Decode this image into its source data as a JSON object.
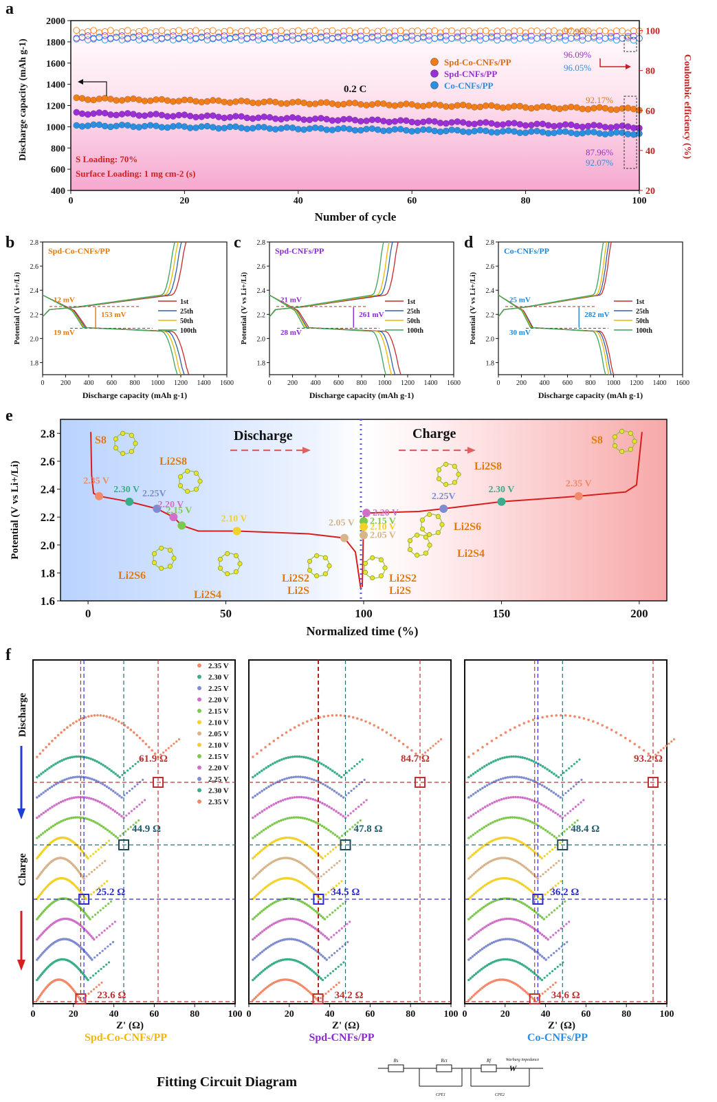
{
  "chart_data": [
    {
      "id": "a",
      "panel_label": "a",
      "type": "scatter",
      "title": "",
      "xlabel": "Number of cycle",
      "ylabel": "Discharge capacity (mAh g-1)",
      "ylabel_right": "Coulombic efficiency (%)",
      "xlim": [
        0,
        100
      ],
      "ylim": [
        400,
        2000
      ],
      "ylim_right": [
        20,
        105
      ],
      "xticks": [
        "0",
        "20",
        "40",
        "60",
        "80",
        "100"
      ],
      "yticks": [
        "400",
        "600",
        "800",
        "1000",
        "1200",
        "1400",
        "1600",
        "1800",
        "2000"
      ],
      "yticks_right": [
        "20",
        "40",
        "60",
        "80",
        "100"
      ],
      "rate_label": "0.2 C",
      "notes": [
        "S Loading: 70%",
        "Surface Loading: 1 mg cm-2 (s)"
      ],
      "legend": [
        "Spd-Co-CNFs/PP",
        "Spd-CNFs/PP",
        "Co-CNFs/PP"
      ],
      "series": [
        {
          "name": "Spd-Co-CNFs/PP",
          "color": "#f07d1a",
          "capacity_start": 1265,
          "capacity_end": 1165,
          "ce": 97.96,
          "retention": "92.17%",
          "ce_label": "97.96%"
        },
        {
          "name": "Spd-CNFs/PP",
          "color": "#9b2fd6",
          "capacity_start": 1130,
          "capacity_end": 995,
          "ce": 96.09,
          "retention": "87.96%",
          "ce_label": "96.09%"
        },
        {
          "name": "Co-CNFs/PP",
          "color": "#2a8fe0",
          "capacity_start": 1015,
          "capacity_end": 935,
          "ce": 96.05,
          "retention": "92.07%",
          "ce_label": "96.05%"
        }
      ]
    },
    {
      "id": "b",
      "panel_label": "b",
      "type": "line",
      "sample": "Spd-Co-CNFs/PP",
      "sample_color": "#e07a10",
      "xlabel": "Discharge capacity (mAh g-1)",
      "ylabel": "Potential (V vs Li+/Li)",
      "xlim": [
        0,
        1600
      ],
      "ylim": [
        1.7,
        2.8
      ],
      "xticks": [
        "0",
        "200",
        "400",
        "600",
        "800",
        "1000",
        "1200",
        "1400",
        "1600"
      ],
      "yticks": [
        "1.8",
        "2.0",
        "2.2",
        "2.4",
        "2.6",
        "2.8"
      ],
      "overpotentials": {
        "upper": "12 mV",
        "lower": "19 mV",
        "gap": "153 mV"
      },
      "legend": [
        "1st",
        "25th",
        "50th",
        "100th"
      ],
      "capacities": [
        1270,
        1230,
        1200,
        1170
      ],
      "gap_x": 460
    },
    {
      "id": "c",
      "panel_label": "c",
      "type": "line",
      "sample": "Spd-CNFs/PP",
      "sample_color": "#8a2bd0",
      "xlabel": "Discharge capacity (mAh g-1)",
      "ylabel": "Potential (V vs Li+/Li)",
      "xlim": [
        0,
        1600
      ],
      "ylim": [
        1.7,
        2.8
      ],
      "xticks": [
        "0",
        "200",
        "400",
        "600",
        "800",
        "1000",
        "1200",
        "1400",
        "1600"
      ],
      "yticks": [
        "1.8",
        "2.0",
        "2.2",
        "2.4",
        "2.6",
        "2.8"
      ],
      "overpotentials": {
        "upper": "21 mV",
        "lower": "28 mV",
        "gap": "261 mV"
      },
      "legend": [
        "1st",
        "25th",
        "50th",
        "100th"
      ],
      "capacities": [
        1140,
        1090,
        1060,
        1010
      ],
      "gap_x": 730
    },
    {
      "id": "d",
      "panel_label": "d",
      "type": "line",
      "sample": "Co-CNFs/PP",
      "sample_color": "#1f86d8",
      "xlabel": "Discharge capacity (mAh g-1)",
      "ylabel": "Potential (V vs Li+/Li)",
      "xlim": [
        0,
        1600
      ],
      "ylim": [
        1.7,
        2.8
      ],
      "xticks": [
        "0",
        "200",
        "400",
        "600",
        "800",
        "1000",
        "1200",
        "1400",
        "1600"
      ],
      "yticks": [
        "1.8",
        "2.0",
        "2.2",
        "2.4",
        "2.6",
        "2.8"
      ],
      "overpotentials": {
        "upper": "25 mV",
        "lower": "30 mV",
        "gap": "282 mV"
      },
      "legend": [
        "1st",
        "25th",
        "50th",
        "100th"
      ],
      "capacities": [
        1000,
        980,
        960,
        930
      ],
      "gap_x": 700
    },
    {
      "id": "e",
      "panel_label": "e",
      "type": "line",
      "xlabel": "Normalized time (%)",
      "ylabel": "Potential (V vs Li+/Li)",
      "xlim": [
        -10,
        210
      ],
      "ylim": [
        1.6,
        2.9
      ],
      "xticks": [
        "0",
        "50",
        "100",
        "150",
        "200"
      ],
      "yticks": [
        "1.6",
        "1.8",
        "2.0",
        "2.2",
        "2.4",
        "2.6",
        "2.8"
      ],
      "discharge_label": "Discharge",
      "charge_label": "Charge",
      "discharge_points": [
        {
          "t": 4,
          "v": 2.35,
          "label": "2.35 V",
          "color": "#f08a6a"
        },
        {
          "t": 15,
          "v": 2.31,
          "label": "2.30 V",
          "color": "#3aae8a"
        },
        {
          "t": 25,
          "v": 2.26,
          "label": "2.25V",
          "color": "#7f8cd0"
        },
        {
          "t": 31,
          "v": 2.2,
          "label": "2.20 V",
          "color": "#d070c8"
        },
        {
          "t": 34,
          "v": 2.14,
          "label": "2.15 V",
          "color": "#7ec850"
        },
        {
          "t": 54,
          "v": 2.1,
          "label": "2.10 V",
          "color": "#f2d12a"
        },
        {
          "t": 93,
          "v": 2.05,
          "label": "2.05 V",
          "color": "#d8b48c"
        }
      ],
      "charge_points": [
        {
          "t": 101,
          "v": 2.23,
          "label": "2.20 V",
          "color": "#d070c8"
        },
        {
          "t": 100,
          "v": 2.17,
          "label": "2.15 V",
          "color": "#7ec850"
        },
        {
          "t": 100,
          "v": 2.13,
          "label": "2.10 V",
          "color": "#f2d12a"
        },
        {
          "t": 100,
          "v": 2.07,
          "label": "2.05 V",
          "color": "#d8b48c"
        },
        {
          "t": 129,
          "v": 2.26,
          "label": "2.25V",
          "color": "#7f8cd0"
        },
        {
          "t": 150,
          "v": 2.31,
          "label": "2.30 V",
          "color": "#3aae8a"
        },
        {
          "t": 178,
          "v": 2.35,
          "label": "2.35 V",
          "color": "#f08a6a"
        }
      ],
      "species": [
        "S8",
        "Li2S8",
        "Li2S6",
        "Li2S4",
        "Li2S2",
        "Li2S",
        "Li2S",
        "Li2S2",
        "Li2S6",
        "Li2S4",
        "Li2S8",
        "S8"
      ]
    },
    {
      "id": "f",
      "panel_label": "f",
      "type": "scatter",
      "xlabel": "Z' (Ω)",
      "xlim": [
        0,
        100
      ],
      "xticks": [
        "0",
        "20",
        "40",
        "60",
        "80",
        "100"
      ],
      "side_labels": {
        "discharge": "Discharge",
        "charge": "Charge"
      },
      "voltages": [
        "2.35 V",
        "2.30 V",
        "2.25 V",
        "2.20 V",
        "2.15 V",
        "2.10 V",
        "2.05 V",
        "2.10 V",
        "2.15 V",
        "2.20 V",
        "2.25 V",
        "2.30 V",
        "2.35 V"
      ],
      "voltage_colors": [
        "#f08a6a",
        "#3aae8a",
        "#7f8cd0",
        "#d070c8",
        "#7ec850",
        "#f2d12a",
        "#d8b48c",
        "#f2d12a",
        "#7ec850",
        "#d070c8",
        "#7f8cd0",
        "#3aae8a",
        "#f08a6a"
      ],
      "panels": [
        {
          "name": "Spd-Co-CNFs/PP",
          "color": "#f2b705",
          "r_235": 61.9,
          "r_220": 44.9,
          "r_205": 25.2,
          "r_end": 23.6,
          "r_235_label": "61.9 Ω",
          "r_220_label": "44.9 Ω",
          "r_205_label": "25.2 Ω",
          "r_end_label": "23.6 Ω"
        },
        {
          "name": "Spd-CNFs/PP",
          "color": "#8a2bd0",
          "r_235": 84.7,
          "r_220": 47.8,
          "r_205": 34.5,
          "r_end": 34.2,
          "r_235_label": "84.7 Ω",
          "r_220_label": "47.8 Ω",
          "r_205_label": "34.5 Ω",
          "r_end_label": "34.2 Ω"
        },
        {
          "name": "Co-CNFs/PP",
          "color": "#2a8fe0",
          "r_235": 93.2,
          "r_220": 48.4,
          "r_205": 36.2,
          "r_end": 34.6,
          "r_235_label": "93.2 Ω",
          "r_220_label": "48.4 Ω",
          "r_205_label": "36.2 Ω",
          "r_end_label": "34.6 Ω"
        }
      ]
    }
  ],
  "circuit": {
    "title": "Fitting Circuit Diagram",
    "elements": [
      "Rs",
      "Rct",
      "Rf",
      "Warburg impedance",
      "W",
      "CPE1",
      "CPE2"
    ]
  }
}
